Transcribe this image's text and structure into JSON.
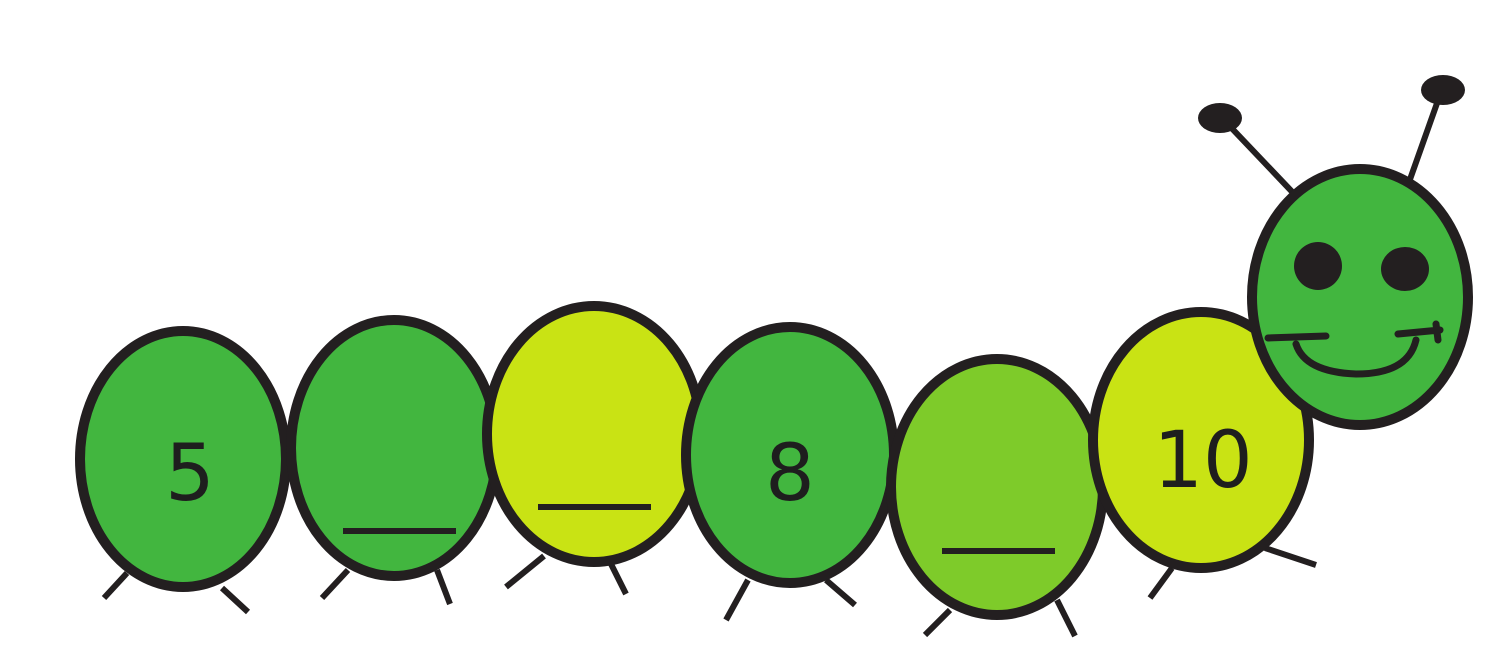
{
  "caterpillar": {
    "segments": [
      {
        "label": "5",
        "blank": false,
        "color": "#42b63f"
      },
      {
        "label": "",
        "blank": true,
        "color": "#42b63f"
      },
      {
        "label": "",
        "blank": true,
        "color": "#c9e314"
      },
      {
        "label": "8",
        "blank": false,
        "color": "#42b63f"
      },
      {
        "label": "",
        "blank": true,
        "color": "#7ecb2a"
      },
      {
        "label": "10",
        "blank": false,
        "color": "#c9e314"
      }
    ],
    "head_color": "#42b63f",
    "outline_color": "#231f20"
  }
}
